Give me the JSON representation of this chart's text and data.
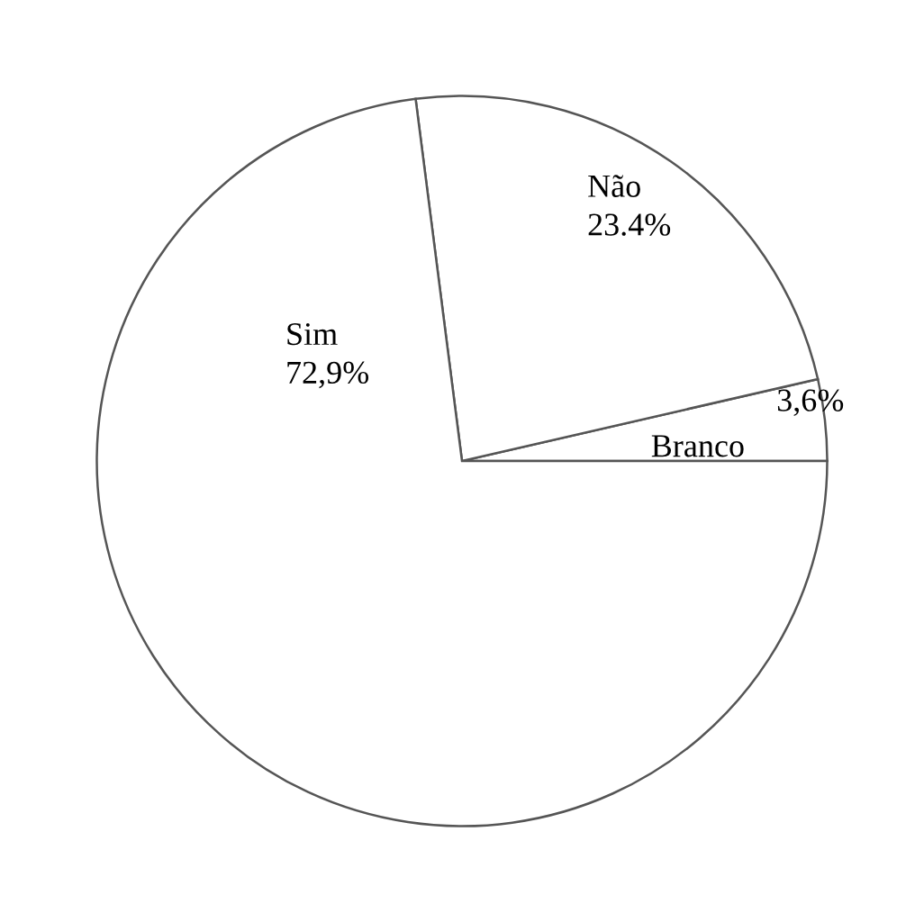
{
  "chart_data": {
    "type": "pie",
    "categories": [
      "Branco",
      "Não",
      "Sim"
    ],
    "values": [
      3.6,
      23.4,
      72.9
    ],
    "value_labels": [
      "3,6%",
      "23.4%",
      "72,9%"
    ],
    "colors": [
      "#ffffff",
      "#ffffff",
      "#ffffff"
    ]
  }
}
